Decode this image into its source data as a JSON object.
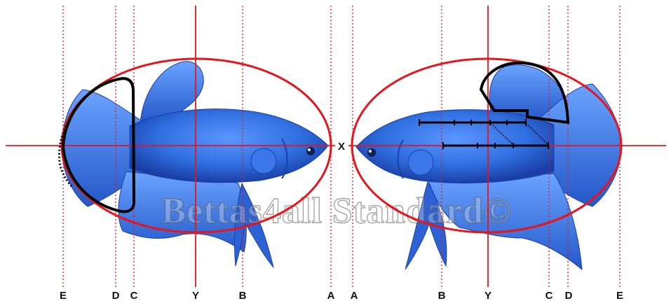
{
  "diagram": {
    "center_marker": "X",
    "watermark": "Bettas4all Standard©",
    "left_fish": {
      "guide_labels": [
        "E",
        "D",
        "C",
        "Y",
        "B",
        "A"
      ]
    },
    "right_fish": {
      "guide_labels": [
        "A",
        "B",
        "Y",
        "C",
        "D",
        "E"
      ]
    }
  },
  "colors": {
    "guide_red": "#e8141b",
    "fish_blue": "#2f6fe0",
    "fish_dark": "#1a3fa8",
    "fin_light": "#4f8ef5",
    "outline_black": "#000000"
  }
}
